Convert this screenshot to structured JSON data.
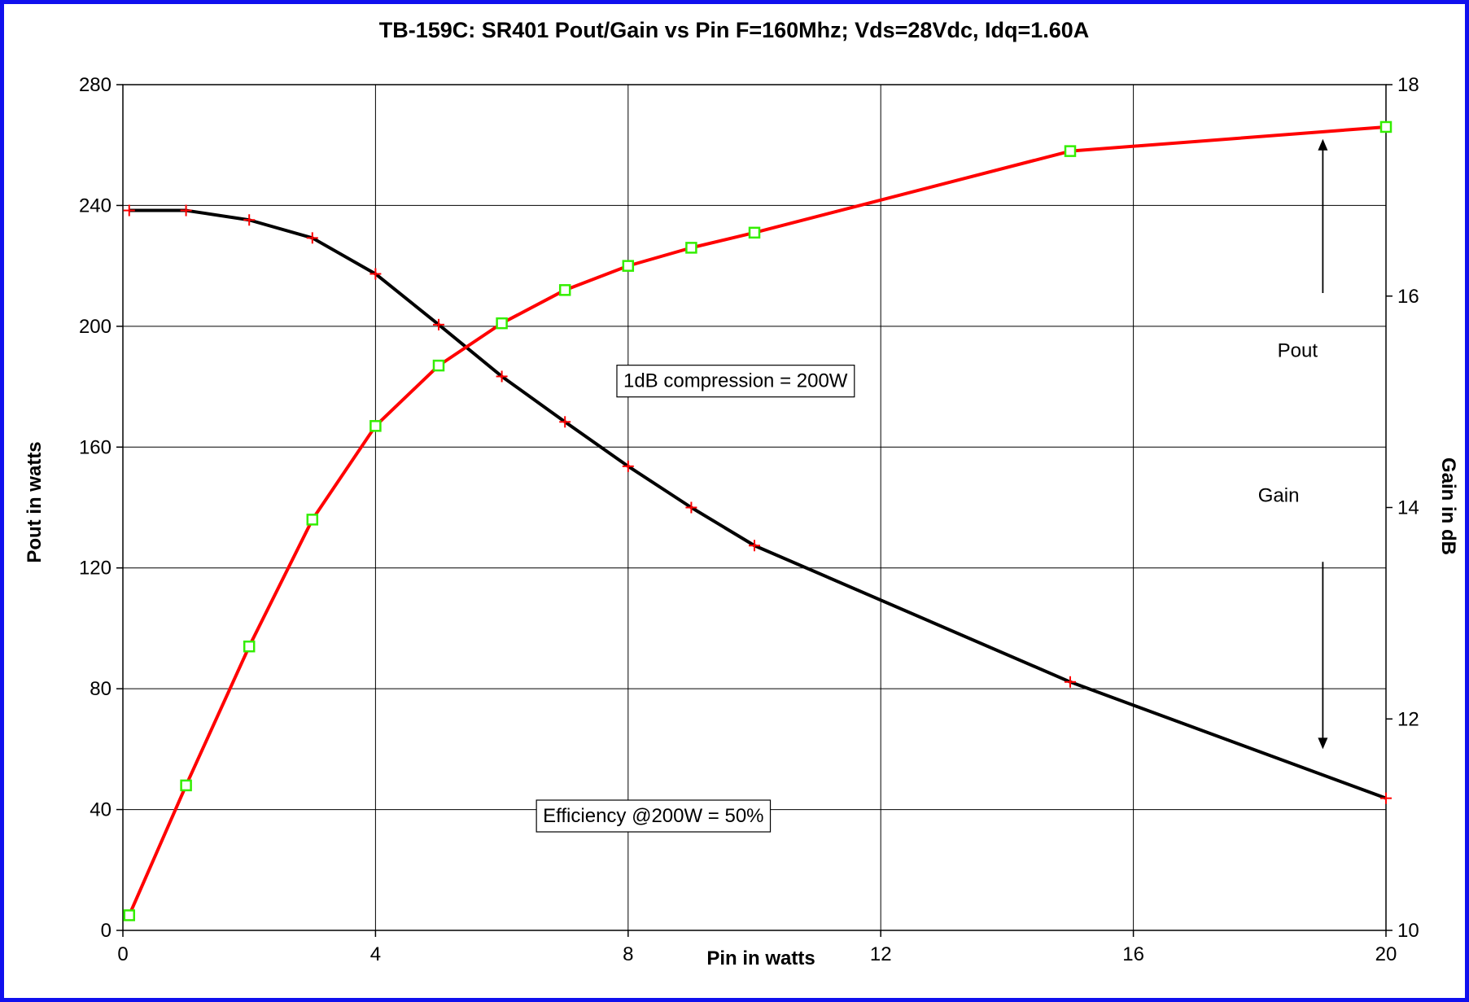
{
  "chart_data": {
    "type": "line",
    "title": "TB-159C: SR401 Pout/Gain vs Pin F=160Mhz; Vds=28Vdc, Idq=1.60A",
    "xlabel": "Pin in watts",
    "ylabel_left": "Pout in watts",
    "ylabel_right": "Gain in dB",
    "xlim": [
      0,
      20
    ],
    "ylim_left": [
      0,
      280
    ],
    "ylim_right": [
      10,
      18
    ],
    "xticks": [
      0,
      4,
      8,
      12,
      16,
      20
    ],
    "xtick_labels": [
      "0",
      "4",
      "8",
      "12",
      "16",
      "20"
    ],
    "yticks_left": [
      0,
      40,
      80,
      120,
      160,
      200,
      240,
      280
    ],
    "ytick_labels_left": [
      "0",
      "40",
      "80",
      "120",
      "160",
      "200",
      "240",
      "280"
    ],
    "yticks_right": [
      10,
      12,
      14,
      16,
      18
    ],
    "ytick_labels_right": [
      "10",
      "12",
      "14",
      "16",
      "18"
    ],
    "grid": true,
    "series": [
      {
        "key": "pout",
        "axis": "left",
        "color": "#ff0000",
        "marker": "square",
        "marker_color": "#33ee00",
        "x": [
          0.1,
          1,
          2,
          3,
          4,
          5,
          6,
          7,
          8,
          9,
          10,
          15,
          20
        ],
        "y": [
          5,
          48,
          94,
          136,
          167,
          187,
          201,
          212,
          220,
          226,
          231,
          258,
          266
        ]
      },
      {
        "key": "gain",
        "axis": "right",
        "color": "#000000",
        "marker": "plus",
        "marker_color": "#ff0000",
        "x": [
          0.1,
          1,
          2,
          3,
          4,
          5,
          6,
          7,
          8,
          9,
          10,
          15,
          20
        ],
        "y": [
          16.81,
          16.81,
          16.72,
          16.55,
          16.21,
          15.73,
          15.24,
          14.81,
          14.39,
          14.0,
          13.64,
          12.35,
          11.25
        ]
      }
    ],
    "annotations": [
      {
        "key": "pout_label",
        "text": "Pout",
        "x": 18.6,
        "y_left": 192
      },
      {
        "key": "gain_label",
        "text": "Gain",
        "x": 18.3,
        "y_left": 144
      },
      {
        "key": "compression",
        "text": "1dB compression = 200W",
        "boxed": true,
        "x": 9.7,
        "y_left": 182
      },
      {
        "key": "efficiency",
        "text": "Efficiency @200W = 50%",
        "boxed": true,
        "x": 8.4,
        "y_left": 38
      }
    ],
    "arrows": [
      {
        "key": "pout-arrow",
        "x": 19.0,
        "from_y_left": 211,
        "to_y_left": 262
      },
      {
        "key": "gain-arrow",
        "x": 19.0,
        "from_y_left": 122,
        "to_y_left": 60
      }
    ]
  }
}
